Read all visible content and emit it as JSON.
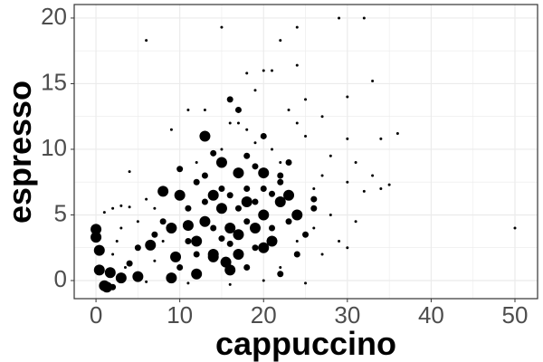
{
  "chart_data": {
    "type": "scatter",
    "xlabel": "cappuccino",
    "ylabel": "espresso",
    "color": "#000000",
    "grid": true,
    "xlim": [
      -2.6,
      52.7
    ],
    "ylim": [
      -1.38,
      21.03
    ],
    "xticks": [
      0,
      10,
      20,
      30,
      40,
      50
    ],
    "yticks": [
      0,
      5,
      10,
      15,
      20
    ],
    "x_minor_ticks": [
      5,
      15,
      25,
      35,
      45
    ],
    "y_minor_ticks": [
      2.5,
      7.5,
      12.5,
      17.5
    ],
    "series": [
      {
        "x": [
          1,
          1.3,
          0.4,
          0,
          0,
          0.4,
          1.7,
          9,
          12,
          14,
          15.5,
          16,
          17,
          16,
          18,
          20,
          14,
          13,
          11,
          12,
          9.5,
          10,
          14,
          15,
          17,
          19,
          20,
          21,
          22,
          24,
          13,
          15,
          17,
          20,
          23,
          8,
          6.5,
          5,
          9,
          3,
          6,
          15,
          22,
          24,
          29,
          32,
          18,
          20,
          21,
          24,
          19,
          25,
          27,
          30,
          33,
          36,
          34,
          30,
          28,
          31,
          33,
          30,
          34,
          32,
          35,
          31,
          29,
          30,
          27,
          50,
          24,
          23,
          21,
          19,
          18,
          17,
          13,
          11,
          9,
          4,
          3,
          2,
          1,
          4,
          2.5,
          3,
          5,
          2,
          3.5,
          7,
          8,
          6,
          7,
          12,
          15,
          16,
          22,
          25,
          27,
          26,
          28,
          26,
          24,
          22,
          20,
          25,
          16,
          11,
          6,
          13,
          14,
          16,
          17,
          18,
          19,
          21,
          22,
          23,
          26,
          25,
          24,
          22,
          18,
          19,
          11,
          10,
          12,
          8,
          7,
          5,
          4,
          2,
          13,
          15,
          16,
          17,
          18,
          20,
          21,
          19,
          22,
          23,
          11,
          14,
          12,
          10,
          16,
          15,
          18,
          20,
          26
        ],
        "values": [
          -0.4,
          -0.5,
          2.3,
          3.9,
          3.3,
          0.8,
          0.6,
          4,
          3,
          2,
          1.4,
          0.8,
          2,
          4,
          6,
          5,
          1.8,
          4.5,
          4.2,
          0.5,
          1.8,
          6.5,
          6.5,
          5.5,
          3.5,
          4,
          2.5,
          3,
          6,
          5,
          11,
          9,
          8.2,
          8.2,
          6.5,
          6.8,
          2.7,
          0.3,
          0.2,
          0.2,
          18.3,
          19.3,
          18.3,
          19.3,
          20,
          20,
          15.8,
          16,
          16,
          16.4,
          14.5,
          13.8,
          12.5,
          14,
          15.2,
          11.2,
          10.8,
          10.8,
          9.5,
          9,
          8,
          7.5,
          7,
          6.8,
          7.3,
          4.5,
          3,
          2.5,
          2,
          4,
          12,
          13,
          10,
          10.5,
          11.5,
          12,
          13,
          13,
          11.5,
          8.3,
          5.7,
          5.5,
          5.2,
          5.6,
          3,
          4,
          4.5,
          2,
          1,
          1.5,
          3,
          6.2,
          5.5,
          9,
          10,
          12,
          9,
          11,
          8,
          7,
          5,
          4,
          3,
          1,
          0,
          -0.2,
          -0.3,
          -0.2,
          -0.1,
          8,
          9.7,
          13.8,
          13,
          7,
          6,
          6.6,
          7.5,
          4.5,
          5.5,
          3.5,
          2,
          0.5,
          1,
          2.5,
          3,
          1,
          2,
          4.5,
          3.5,
          2.5,
          1.3,
          -0.5,
          6,
          7,
          6.5,
          5.5,
          4.5,
          7,
          4,
          8.7,
          8,
          9,
          5.5,
          4,
          7.5,
          8.5,
          2.8,
          3.2,
          9.5,
          11,
          6.2
        ],
        "sizes": [
          6,
          6,
          6,
          6,
          6,
          6,
          6,
          6,
          6,
          6,
          6,
          6,
          6,
          6,
          6,
          6,
          6,
          6,
          6,
          6,
          6,
          6,
          6,
          6,
          6,
          6,
          6,
          6,
          6,
          6,
          6,
          6,
          6,
          6,
          6,
          6,
          6,
          6,
          6,
          6,
          1.5,
          1.5,
          1.5,
          1.5,
          1.5,
          1.5,
          1.5,
          1.5,
          1.5,
          1.5,
          1.5,
          1.5,
          1.5,
          1.5,
          1.5,
          1.5,
          1.5,
          1.5,
          1.5,
          1.5,
          1.5,
          1.5,
          1.5,
          1.5,
          1.5,
          1.5,
          1.5,
          1.5,
          1.5,
          1.5,
          1.5,
          1.5,
          1.5,
          1.5,
          1.5,
          1.5,
          1.5,
          1.5,
          1.5,
          1.5,
          1.5,
          1.5,
          1.5,
          1.5,
          1.5,
          1.5,
          1.5,
          1.5,
          1.5,
          1.5,
          1.5,
          1.5,
          1.5,
          1.5,
          1.5,
          1.5,
          1.5,
          1.5,
          1.5,
          1.5,
          1.5,
          1.5,
          1.5,
          1.5,
          1.5,
          1.5,
          1.5,
          1.5,
          1.5,
          3.5,
          3.5,
          3.5,
          3.5,
          3.5,
          3.5,
          3.5,
          3.5,
          3.5,
          3.5,
          3.5,
          3.5,
          3.5,
          3.5,
          3.5,
          3.5,
          3.5,
          3.5,
          3.5,
          3.5,
          3.5,
          3.5,
          3.5,
          3.5,
          3.5,
          3.5,
          3.5,
          3.5,
          3.5,
          3.5,
          3.5,
          3.5,
          3.5,
          3.5,
          3.5,
          3.5,
          3.5,
          3.5,
          3.5,
          3.5,
          3.5,
          3.5
        ]
      }
    ]
  }
}
